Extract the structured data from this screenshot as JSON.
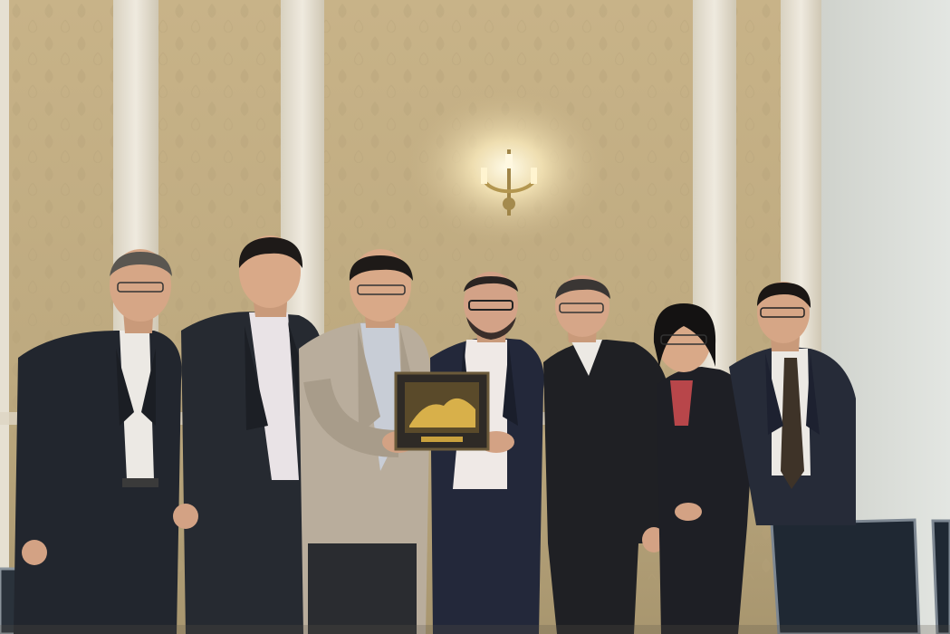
{
  "photo": {
    "subject": "group-photo",
    "people_count": 7,
    "palette": {
      "wall": "#c9b48a",
      "wall_shadow": "#9d8a66",
      "pilaster": "#e8e2d4",
      "right_wall": "#d9dcd8",
      "suit_dark": "#22262e",
      "suit_light": "#b9ad9c",
      "skin": "#d9a988",
      "hair": "#1e1a18",
      "shirt_white": "#ece9e4",
      "chair": "#1f2833",
      "lamp_glow": "#fff6d8"
    },
    "icons": [
      "wall-sconce-icon",
      "framed-plaque-icon",
      "office-chair-icon"
    ]
  }
}
